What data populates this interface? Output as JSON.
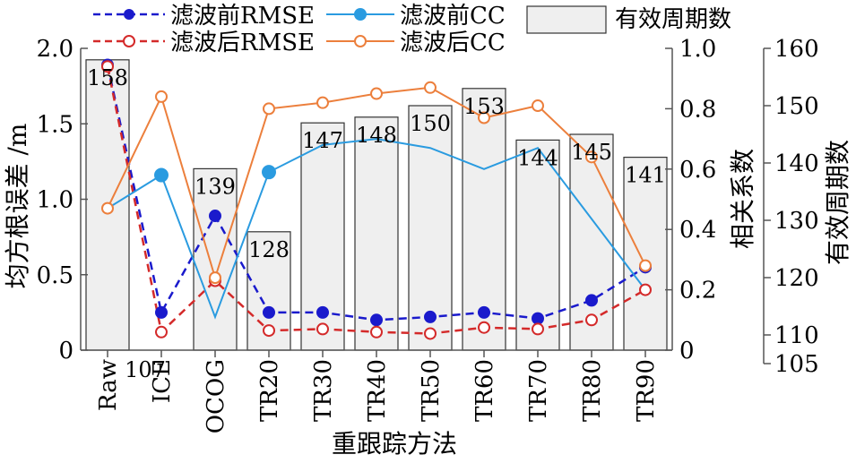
{
  "chart_data": {
    "type": "bar+line",
    "xlabel": "重跟踪方法",
    "ylabel_left": "均方根误差 /m",
    "ylabel_right1": "相关系数",
    "ylabel_right2": "有效周期数",
    "categories": [
      "Raw",
      "ICE",
      "OCOG",
      "TR20",
      "TR30",
      "TR40",
      "TR50",
      "TR60",
      "TR70",
      "TR80",
      "TR90"
    ],
    "axes": {
      "left": {
        "min": 0,
        "max": 2.0,
        "ticks": [
          0,
          0.5,
          1.0,
          1.5,
          2.0
        ],
        "tick_labels": [
          "0",
          "0.5",
          "1.0",
          "1.5",
          "2.0"
        ]
      },
      "right1": {
        "min": 0,
        "max": 1.0,
        "ticks": [
          0,
          0.2,
          0.4,
          0.6,
          0.8,
          1.0
        ],
        "tick_labels": [
          "0",
          "0.2",
          "0.4",
          "0.6",
          "0.8",
          "1.0"
        ]
      },
      "right2": {
        "min": 105,
        "max": 160,
        "ticks": [
          105,
          110,
          120,
          130,
          140,
          150,
          160
        ],
        "tick_labels": [
          "105",
          "110",
          "120",
          "130",
          "140",
          "150",
          "160"
        ]
      }
    },
    "bars": {
      "name": "有效周期数",
      "axis": "right2",
      "values": [
        158,
        107,
        139,
        128,
        147,
        148,
        150,
        153,
        144,
        145,
        141
      ],
      "labels": [
        "158",
        "107",
        "139",
        "128",
        "147",
        "148",
        "150",
        "153",
        "144",
        "145",
        "141"
      ],
      "color": "#efefef",
      "edge": "#333333"
    },
    "series": [
      {
        "name": "滤波前RMSE",
        "axis": "left",
        "style": "dashed",
        "marker": "filled",
        "color": "#1a1acc",
        "values": [
          1.89,
          0.25,
          0.89,
          0.25,
          0.25,
          0.2,
          0.22,
          0.25,
          0.21,
          0.33,
          0.55
        ]
      },
      {
        "name": "滤波后RMSE",
        "axis": "left",
        "style": "dashed",
        "marker": "open",
        "color": "#d42a2a",
        "values": [
          1.88,
          0.12,
          0.46,
          0.13,
          0.14,
          0.12,
          0.11,
          0.15,
          0.14,
          0.2,
          0.4
        ]
      },
      {
        "name": "滤波前CC",
        "axis": "right1",
        "style": "solid",
        "marker": "filled",
        "color": "#2a9be0",
        "values": [
          0.47,
          0.58,
          0.11,
          0.59,
          0.68,
          0.7,
          0.67,
          0.6,
          0.67,
          null,
          0.2
        ],
        "marker_indices": [
          1,
          3
        ]
      },
      {
        "name": "滤波后CC",
        "axis": "right1",
        "style": "solid",
        "marker": "open",
        "color": "#ec7f3c",
        "values": [
          0.47,
          0.84,
          0.24,
          0.8,
          0.82,
          0.85,
          0.87,
          0.77,
          0.81,
          0.64,
          0.28
        ]
      }
    ],
    "legend": "top",
    "grid": false
  }
}
